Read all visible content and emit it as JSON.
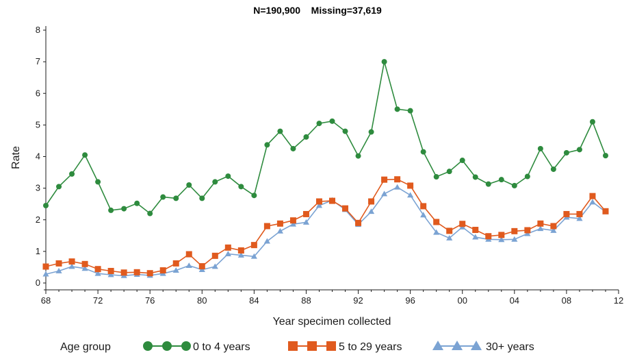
{
  "chart_data": {
    "type": "line",
    "title": "N=190,900    Missing=37,619",
    "xlabel": "Year specimen collected",
    "ylabel": "Rate",
    "xlim": [
      1968,
      2012
    ],
    "ylim": [
      0,
      8
    ],
    "x_ticks": [
      1968,
      1972,
      1976,
      1980,
      1984,
      1988,
      1992,
      1996,
      2000,
      2004,
      2008,
      2012
    ],
    "x_tick_labels": [
      "68",
      "72",
      "76",
      "80",
      "84",
      "88",
      "92",
      "96",
      "00",
      "04",
      "08",
      "12"
    ],
    "y_ticks": [
      0,
      1,
      2,
      3,
      4,
      5,
      6,
      7,
      8
    ],
    "y_tick_labels": [
      "0",
      "1",
      "2",
      "3",
      "4",
      "5",
      "6",
      "7",
      "8"
    ],
    "grid": false,
    "legend_title": "Age group",
    "legend_placement": "bottom",
    "x": [
      1968,
      1969,
      1970,
      1971,
      1972,
      1973,
      1974,
      1975,
      1976,
      1977,
      1978,
      1979,
      1980,
      1981,
      1982,
      1983,
      1984,
      1985,
      1986,
      1987,
      1988,
      1989,
      1990,
      1991,
      1992,
      1993,
      1994,
      1995,
      1996,
      1997,
      1998,
      1999,
      2000,
      2001,
      2002,
      2003,
      2004,
      2005,
      2006,
      2007,
      2008,
      2009,
      2010,
      2011
    ],
    "series": [
      {
        "name": "0 to 4 years",
        "color": "#2e8b3e",
        "marker": "circle",
        "values": [
          2.45,
          3.05,
          3.45,
          4.05,
          3.2,
          2.3,
          2.35,
          2.52,
          2.2,
          2.72,
          2.68,
          3.1,
          2.68,
          3.2,
          3.38,
          3.05,
          2.77,
          4.37,
          4.8,
          4.25,
          4.62,
          5.05,
          5.12,
          4.8,
          4.02,
          4.78,
          7.0,
          5.5,
          5.45,
          4.15,
          3.36,
          3.53,
          3.88,
          3.35,
          3.13,
          3.27,
          3.08,
          3.37,
          4.25,
          3.6,
          4.12,
          4.22,
          5.1,
          4.03
        ]
      },
      {
        "name": "5 to 29 years",
        "color": "#e05a1e",
        "marker": "square",
        "values": [
          0.52,
          0.62,
          0.68,
          0.6,
          0.44,
          0.38,
          0.33,
          0.34,
          0.31,
          0.4,
          0.62,
          0.91,
          0.53,
          0.86,
          1.12,
          1.03,
          1.2,
          1.8,
          1.88,
          1.98,
          2.18,
          2.58,
          2.6,
          2.36,
          1.9,
          2.58,
          3.27,
          3.28,
          3.08,
          2.43,
          1.93,
          1.65,
          1.87,
          1.68,
          1.48,
          1.52,
          1.64,
          1.67,
          1.88,
          1.8,
          2.18,
          2.18,
          2.75,
          2.27
        ]
      },
      {
        "name": "30+ years",
        "color": "#7ba3d3",
        "marker": "triangle",
        "values": [
          0.28,
          0.38,
          0.52,
          0.46,
          0.3,
          0.26,
          0.23,
          0.27,
          0.24,
          0.3,
          0.4,
          0.55,
          0.42,
          0.52,
          0.92,
          0.88,
          0.84,
          1.32,
          1.64,
          1.86,
          1.92,
          2.45,
          2.62,
          2.32,
          1.85,
          2.26,
          2.82,
          3.03,
          2.78,
          2.15,
          1.6,
          1.42,
          1.77,
          1.45,
          1.38,
          1.37,
          1.38,
          1.56,
          1.72,
          1.66,
          2.08,
          2.04,
          2.56,
          2.25
        ]
      }
    ]
  }
}
